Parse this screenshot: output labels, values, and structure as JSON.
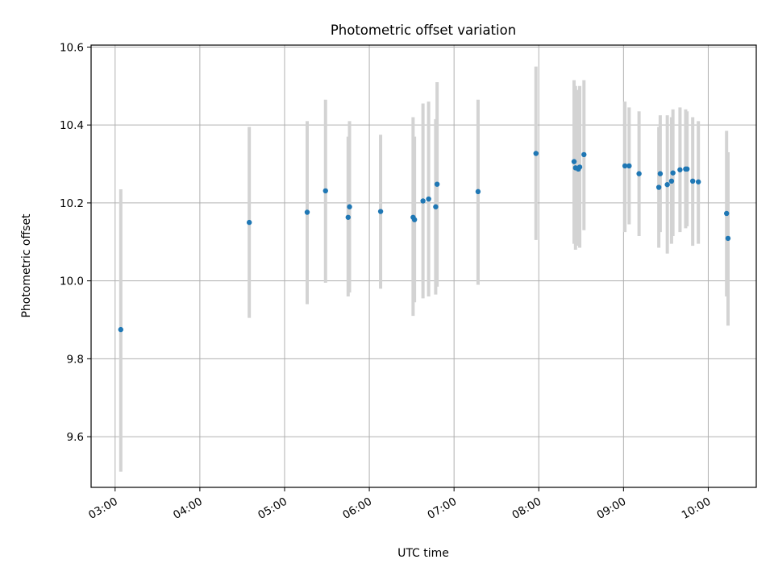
{
  "chart_data": {
    "type": "scatter",
    "title": "Photometric offset variation",
    "xlabel": "UTC time",
    "ylabel": "Photometric offset",
    "xlim": [
      "02:43",
      "10:34"
    ],
    "ylim": [
      9.47,
      10.605
    ],
    "xticks": [
      "03:00",
      "04:00",
      "05:00",
      "06:00",
      "07:00",
      "08:00",
      "09:00",
      "10:00"
    ],
    "yticks": [
      9.6,
      9.8,
      10.0,
      10.2,
      10.4,
      10.6
    ],
    "grid": true,
    "colors": {
      "marker": "#1f77b4",
      "errorbar": "#d3d3d3",
      "grid": "#b0b0b0"
    },
    "series": [
      {
        "points": [
          {
            "x": "03:04",
            "y": 9.875,
            "lo": 9.51,
            "hi": 10.235
          },
          {
            "x": "04:35",
            "y": 10.15,
            "lo": 9.905,
            "hi": 10.395
          },
          {
            "x": "05:16",
            "y": 10.176,
            "lo": 9.94,
            "hi": 10.41
          },
          {
            "x": "05:29",
            "y": 10.231,
            "lo": 9.995,
            "hi": 10.465
          },
          {
            "x": "05:45",
            "y": 10.163,
            "lo": 9.96,
            "hi": 10.37
          },
          {
            "x": "05:46",
            "y": 10.19,
            "lo": 9.97,
            "hi": 10.41
          },
          {
            "x": "06:08",
            "y": 10.178,
            "lo": 9.98,
            "hi": 10.375
          },
          {
            "x": "06:31",
            "y": 10.163,
            "lo": 9.91,
            "hi": 10.42
          },
          {
            "x": "06:32",
            "y": 10.157,
            "lo": 9.945,
            "hi": 10.37
          },
          {
            "x": "06:38",
            "y": 10.205,
            "lo": 9.955,
            "hi": 10.455
          },
          {
            "x": "06:42",
            "y": 10.21,
            "lo": 9.96,
            "hi": 10.46
          },
          {
            "x": "06:47",
            "y": 10.19,
            "lo": 9.965,
            "hi": 10.415
          },
          {
            "x": "06:48",
            "y": 10.248,
            "lo": 9.985,
            "hi": 10.51
          },
          {
            "x": "07:17",
            "y": 10.229,
            "lo": 9.99,
            "hi": 10.465
          },
          {
            "x": "07:58",
            "y": 10.327,
            "lo": 10.105,
            "hi": 10.55
          },
          {
            "x": "08:25",
            "y": 10.306,
            "lo": 10.095,
            "hi": 10.515
          },
          {
            "x": "08:26",
            "y": 10.29,
            "lo": 10.08,
            "hi": 10.5
          },
          {
            "x": "08:28",
            "y": 10.287,
            "lo": 10.09,
            "hi": 10.49
          },
          {
            "x": "08:29",
            "y": 10.292,
            "lo": 10.085,
            "hi": 10.5
          },
          {
            "x": "08:32",
            "y": 10.324,
            "lo": 10.13,
            "hi": 10.515
          },
          {
            "x": "09:01",
            "y": 10.295,
            "lo": 10.125,
            "hi": 10.46
          },
          {
            "x": "09:04",
            "y": 10.295,
            "lo": 10.145,
            "hi": 10.445
          },
          {
            "x": "09:11",
            "y": 10.275,
            "lo": 10.115,
            "hi": 10.435
          },
          {
            "x": "09:25",
            "y": 10.24,
            "lo": 10.085,
            "hi": 10.395
          },
          {
            "x": "09:26",
            "y": 10.275,
            "lo": 10.125,
            "hi": 10.425
          },
          {
            "x": "09:31",
            "y": 10.247,
            "lo": 10.07,
            "hi": 10.425
          },
          {
            "x": "09:34",
            "y": 10.256,
            "lo": 10.095,
            "hi": 10.42
          },
          {
            "x": "09:35",
            "y": 10.277,
            "lo": 10.115,
            "hi": 10.44
          },
          {
            "x": "09:40",
            "y": 10.285,
            "lo": 10.125,
            "hi": 10.445
          },
          {
            "x": "09:44",
            "y": 10.287,
            "lo": 10.135,
            "hi": 10.44
          },
          {
            "x": "09:45",
            "y": 10.287,
            "lo": 10.14,
            "hi": 10.435
          },
          {
            "x": "09:49",
            "y": 10.256,
            "lo": 10.09,
            "hi": 10.42
          },
          {
            "x": "09:53",
            "y": 10.254,
            "lo": 10.095,
            "hi": 10.41
          },
          {
            "x": "10:13",
            "y": 10.173,
            "lo": 9.96,
            "hi": 10.385
          },
          {
            "x": "10:14",
            "y": 10.109,
            "lo": 9.885,
            "hi": 10.33
          }
        ]
      }
    ]
  }
}
